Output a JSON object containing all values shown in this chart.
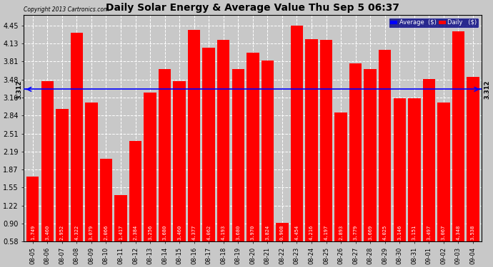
{
  "title": "Daily Solar Energy & Average Value Thu Sep 5 06:37",
  "copyright": "Copyright 2013 Cartronics.com",
  "average_value": 3.312,
  "bar_color": "#FF0000",
  "average_line_color": "#0000FF",
  "background_color": "#C8C8C8",
  "plot_bg_color": "#C8C8C8",
  "categories": [
    "08-05",
    "08-06",
    "08-07",
    "08-08",
    "08-09",
    "08-10",
    "08-11",
    "08-12",
    "08-13",
    "08-14",
    "08-15",
    "08-16",
    "08-17",
    "08-18",
    "08-19",
    "08-20",
    "08-21",
    "08-22",
    "08-23",
    "08-24",
    "08-25",
    "08-26",
    "08-27",
    "08-28",
    "08-29",
    "08-30",
    "08-31",
    "09-01",
    "09-02",
    "09-03",
    "09-04"
  ],
  "values": [
    1.749,
    3.46,
    2.952,
    4.322,
    3.079,
    2.066,
    1.417,
    2.384,
    3.256,
    3.68,
    3.46,
    4.377,
    4.062,
    4.193,
    3.68,
    3.97,
    3.824,
    0.908,
    4.454,
    4.216,
    4.197,
    2.893,
    3.779,
    3.669,
    4.025,
    3.146,
    3.151,
    3.497,
    3.067,
    4.348,
    3.538
  ],
  "yticks": [
    0.58,
    0.9,
    1.22,
    1.55,
    1.87,
    2.19,
    2.51,
    2.84,
    3.16,
    3.48,
    3.81,
    4.13,
    4.45
  ],
  "ylim": [
    0.58,
    4.65
  ],
  "legend_avg_color": "#0000FF",
  "legend_daily_color": "#FF0000",
  "legend_avg_label": "Average  ($)",
  "legend_daily_label": "Daily   ($)"
}
